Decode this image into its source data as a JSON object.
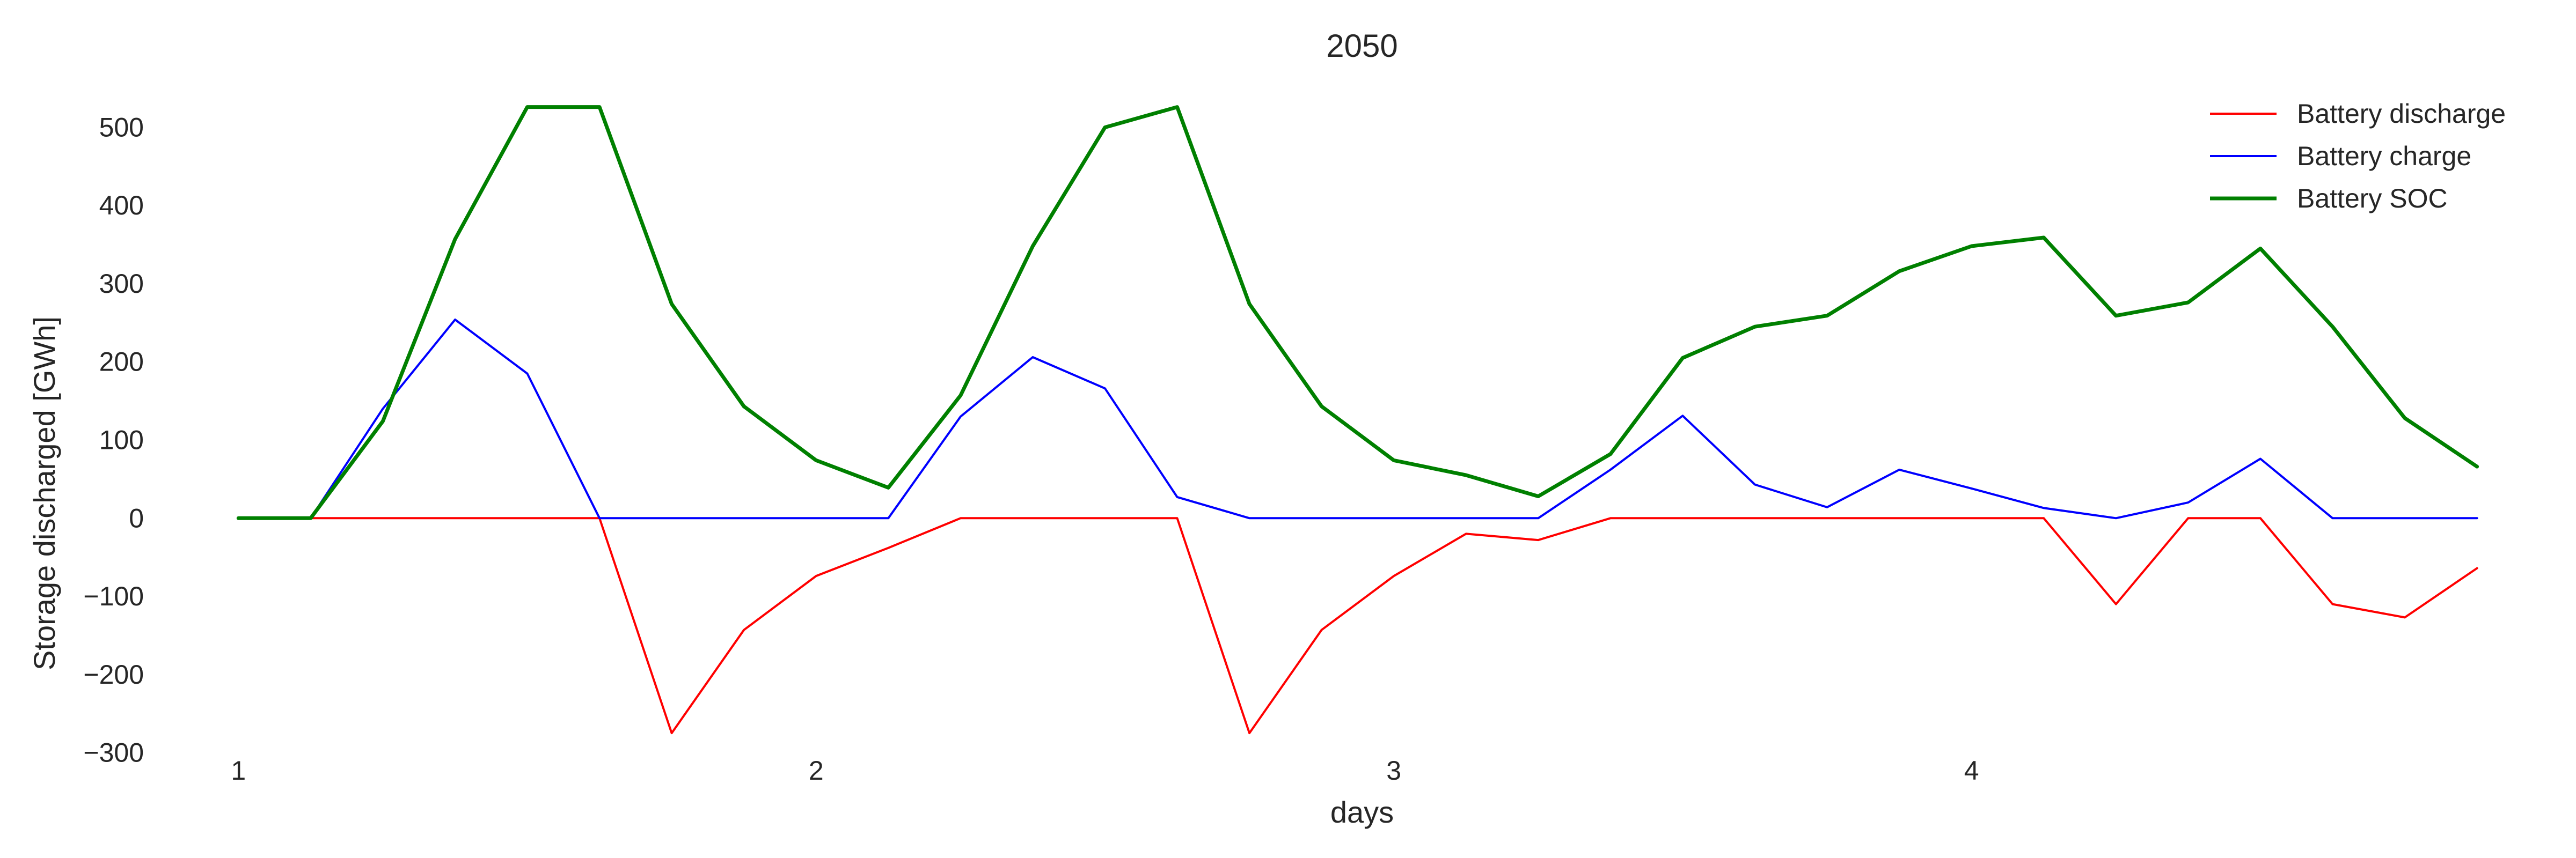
{
  "chart_data": {
    "type": "line",
    "title": "2050",
    "xlabel": "days",
    "ylabel": "Storage discharged [GWh]",
    "xlim": [
      0.97,
      4.92
    ],
    "ylim": [
      -325,
      560
    ],
    "xticks": [
      1,
      2,
      3,
      4
    ],
    "xtick_labels": [
      "1",
      "2",
      "3",
      "4"
    ],
    "yticks": [
      -300,
      -200,
      -100,
      0,
      100,
      200,
      300,
      400,
      500
    ],
    "ytick_labels": [
      "−300",
      "−200",
      "−100",
      "0",
      "100",
      "200",
      "300",
      "400",
      "500"
    ],
    "grid": false,
    "legend": "top-right",
    "x": [
      1.0,
      1.125,
      1.25,
      1.375,
      1.5,
      1.625,
      1.75,
      1.875,
      2.0,
      2.125,
      2.25,
      2.375,
      2.5,
      2.625,
      2.75,
      2.875,
      3.0,
      3.125,
      3.25,
      3.375,
      3.5,
      3.625,
      3.75,
      3.875,
      4.0,
      4.125,
      4.25,
      4.375,
      4.5,
      4.625,
      4.75,
      4.875
    ],
    "series": [
      {
        "name": "Battery discharge",
        "color": "#ff0000",
        "values": [
          0,
          0,
          0,
          0,
          0,
          0,
          -275,
          -143,
          -74,
          -38,
          0,
          0,
          0,
          0,
          -275,
          -143,
          -74,
          -20,
          -28,
          0,
          0,
          0,
          0,
          0,
          0,
          0,
          -110,
          0,
          0,
          -110,
          -127,
          -64
        ]
      },
      {
        "name": "Battery charge",
        "color": "#0000ff",
        "values": [
          0,
          0,
          140,
          254,
          185,
          0,
          0,
          0,
          0,
          0,
          130,
          206,
          166,
          27,
          0,
          0,
          0,
          0,
          0,
          62,
          131,
          43,
          14,
          62,
          38,
          13,
          0,
          20,
          76,
          0,
          0,
          0
        ]
      },
      {
        "name": "Battery SOC",
        "color": "#008000",
        "values": [
          0,
          0,
          124,
          357,
          526,
          526,
          274,
          143,
          74,
          39,
          157,
          348,
          500,
          526,
          274,
          143,
          74,
          55,
          28,
          82,
          205,
          245,
          259,
          316,
          348,
          359,
          259,
          276,
          345,
          245,
          128,
          66
        ]
      }
    ]
  }
}
